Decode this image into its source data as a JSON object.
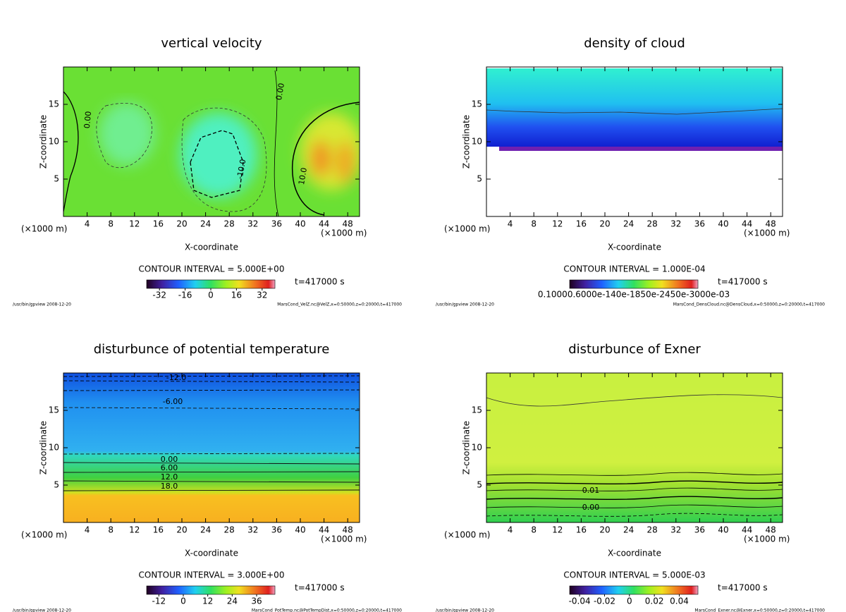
{
  "chart_data": [
    {
      "type": "contour",
      "title": "vertical velocity",
      "xlabel": "X-coordinate",
      "ylabel": "Z-coordinate",
      "xunit": "(×1000 m)",
      "xlim": [
        0,
        50
      ],
      "ylim": [
        0,
        20
      ],
      "xticks": [
        4,
        8,
        12,
        16,
        20,
        24,
        28,
        32,
        36,
        40,
        44,
        48
      ],
      "yticks": [
        5,
        10,
        15
      ],
      "contour_interval": "CONTOUR INTERVAL = 5.000E+00",
      "time": "t=417000 s",
      "clim": [
        -40,
        40
      ],
      "cticks": [
        -32,
        -16,
        0,
        16,
        32
      ],
      "contour_labels": [
        "0.00",
        "0.00",
        "-10.0",
        "10.0"
      ],
      "footer_left": "/usr/bin/gpview  2008-12-20",
      "footer_right": "MarsCond_VelZ.nc@VelZ,x=0:50000,z=0:20000,t=417000"
    },
    {
      "type": "contour",
      "title": "density of cloud",
      "xlabel": "X-coordinate",
      "ylabel": "Z-coordinate",
      "xunit": "(×1000 m)",
      "xlim": [
        0,
        50
      ],
      "ylim": [
        0,
        20
      ],
      "xticks": [
        4,
        8,
        12,
        16,
        20,
        24,
        28,
        32,
        36,
        40,
        44,
        48
      ],
      "yticks": [
        5,
        10,
        15
      ],
      "contour_interval": "CONTOUR INTERVAL = 1.000E-04",
      "time": "t=417000 s",
      "colorbar_label": "0.10000.6000e-140e-1850e-2450e-3000e-03",
      "footer_left": "/usr/bin/gpview  2008-12-20",
      "footer_right": "MarsCond_DensCloud.nc@DensCloud,x=0:50000,z=0:20000,t=417000"
    },
    {
      "type": "contour",
      "title": "disturbunce of potential temperature",
      "xlabel": "X-coordinate",
      "ylabel": "Z-coordinate",
      "xunit": "(×1000 m)",
      "xlim": [
        0,
        50
      ],
      "ylim": [
        0,
        20
      ],
      "xticks": [
        4,
        8,
        12,
        16,
        20,
        24,
        28,
        32,
        36,
        40,
        44,
        48
      ],
      "yticks": [
        5,
        10,
        15
      ],
      "contour_interval": "CONTOUR INTERVAL = 3.000E+00",
      "time": "t=417000 s",
      "clim": [
        -18,
        45
      ],
      "cticks": [
        -12,
        0,
        12,
        24,
        36
      ],
      "contour_labels": [
        "-12.0",
        "-6.00",
        "0.00",
        "6.00",
        "12.0",
        "18.0"
      ],
      "footer_left": "/usr/bin/gpview  2008-12-20",
      "footer_right": "MarsCond_PotTemp.nc@PotTempDist,x=0:50000,z=0:20000,t=417000"
    },
    {
      "type": "contour",
      "title": "disturbunce of Exner",
      "xlabel": "X-coordinate",
      "ylabel": "Z-coordinate",
      "xunit": "(×1000 m)",
      "xlim": [
        0,
        50
      ],
      "ylim": [
        0,
        20
      ],
      "xticks": [
        4,
        8,
        12,
        16,
        20,
        24,
        28,
        32,
        36,
        40,
        44,
        48
      ],
      "yticks": [
        5,
        10,
        15
      ],
      "contour_interval": "CONTOUR INTERVAL = 5.000E-03",
      "time": "t=417000 s",
      "clim": [
        -0.048,
        0.055
      ],
      "cticks": [
        -0.04,
        -0.02,
        0,
        0.02,
        0.04
      ],
      "contour_labels": [
        "0.01",
        "0.00"
      ],
      "footer_left": "/usr/bin/gpview  2008-12-20",
      "footer_right": "MarsCond_Exner.nc@Exner,x=0:50000,z=0:20000,t=417000"
    }
  ]
}
